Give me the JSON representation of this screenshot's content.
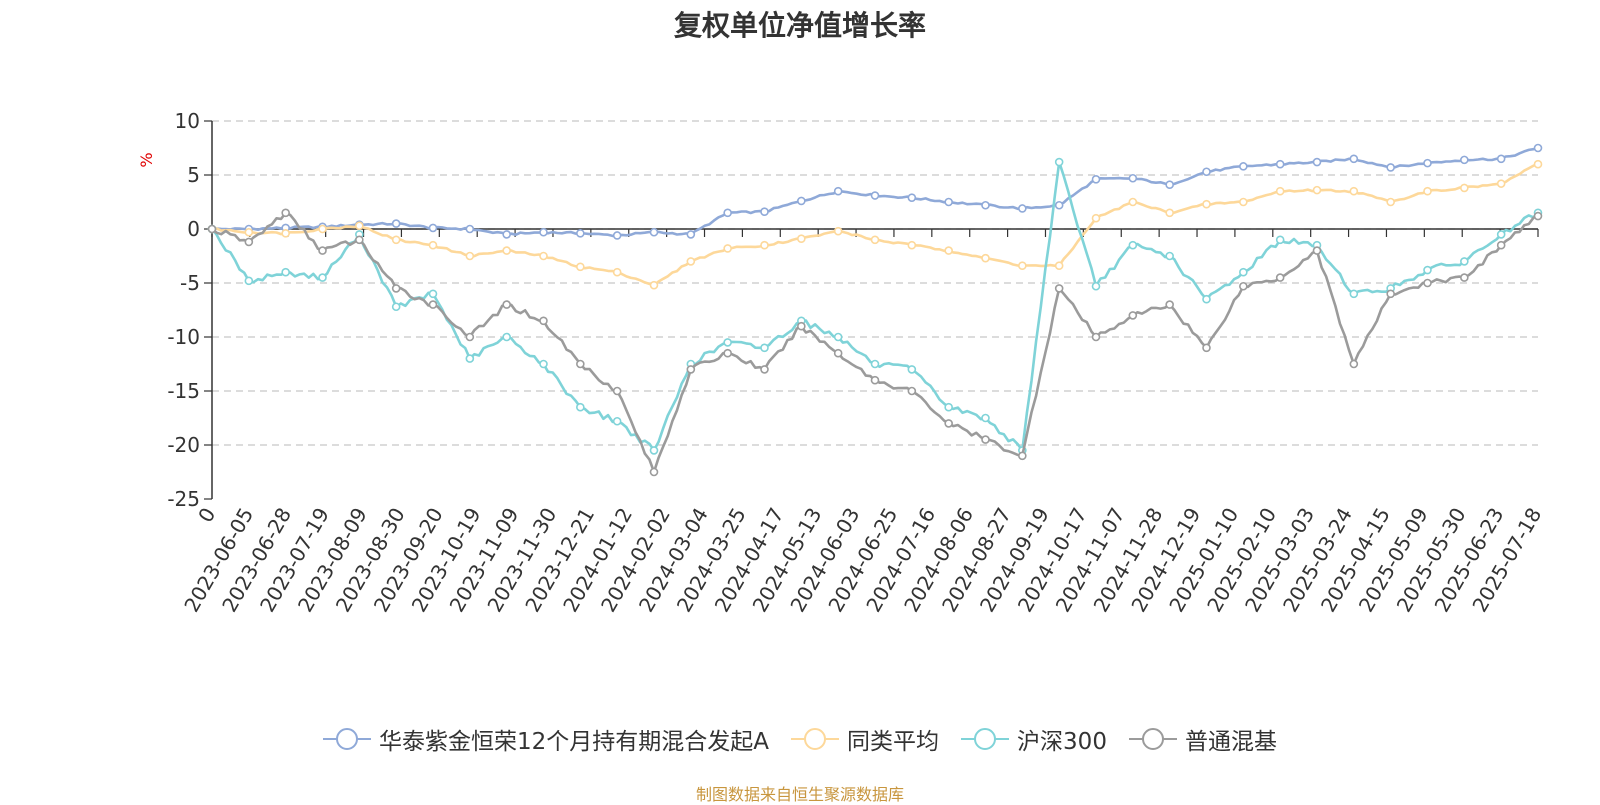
{
  "chart_data": {
    "type": "line",
    "title": "复权单位净值增长率",
    "ylabel": "%",
    "ylim": [
      -25,
      10
    ],
    "yticks": [
      10,
      5,
      0,
      -5,
      -10,
      -15,
      -20,
      -25
    ],
    "x_tick_labels": [
      "0",
      "2023-06-05",
      "2023-06-28",
      "2023-07-19",
      "2023-08-09",
      "2023-08-30",
      "2023-09-20",
      "2023-10-19",
      "2023-11-09",
      "2023-11-30",
      "2023-12-21",
      "2024-01-12",
      "2024-02-02",
      "2024-03-04",
      "2024-03-25",
      "2024-04-17",
      "2024-05-13",
      "2024-06-03",
      "2024-06-25",
      "2024-07-16",
      "2024-08-06",
      "2024-08-27",
      "2024-09-19",
      "2024-10-17",
      "2024-11-07",
      "2024-11-28",
      "2024-12-19",
      "2025-01-10",
      "2025-02-10",
      "2025-03-03",
      "2025-03-24",
      "2025-04-15",
      "2025-05-09",
      "2025-05-30",
      "2025-06-23",
      "2025-07-18"
    ],
    "grid": true,
    "legend_position": "bottom",
    "source": "制图数据来自恒生聚源数据库",
    "series": [
      {
        "name": "华泰紫金恒荣12个月持有期混合发起A",
        "color": "#8fa9d8",
        "values": [
          0,
          0,
          0.1,
          0.2,
          0.4,
          0.5,
          0.1,
          0,
          -0.5,
          -0.3,
          -0.4,
          -0.6,
          -0.3,
          -0.5,
          1.5,
          1.6,
          2.6,
          3.5,
          3.1,
          2.9,
          2.5,
          2.2,
          1.9,
          2.2,
          4.6,
          4.7,
          4.1,
          5.3,
          5.8,
          6.0,
          6.2,
          6.5,
          5.7,
          6.1,
          6.4,
          6.5,
          7.5
        ]
      },
      {
        "name": "同类平均",
        "color": "#fdd89a",
        "values": [
          0,
          -0.3,
          -0.4,
          0,
          0.3,
          -1.0,
          -1.5,
          -2.5,
          -2.0,
          -2.5,
          -3.5,
          -4.0,
          -5.2,
          -3.0,
          -1.8,
          -1.5,
          -0.9,
          -0.2,
          -1.0,
          -1.5,
          -2.0,
          -2.7,
          -3.4,
          -3.4,
          1.0,
          2.5,
          1.5,
          2.3,
          2.5,
          3.5,
          3.6,
          3.5,
          2.5,
          3.5,
          3.8,
          4.2,
          6.0
        ]
      },
      {
        "name": "沪深300",
        "color": "#7fd3d8",
        "values": [
          0,
          -4.8,
          -4.0,
          -4.5,
          -0.5,
          -7.2,
          -6.0,
          -12.0,
          -10.0,
          -12.5,
          -16.5,
          -17.8,
          -20.5,
          -12.5,
          -10.5,
          -11.0,
          -8.5,
          -10.0,
          -12.5,
          -13.0,
          -16.5,
          -17.5,
          -20.5,
          6.2,
          -5.3,
          -1.5,
          -2.5,
          -6.5,
          -4.0,
          -1.0,
          -1.5,
          -6.0,
          -5.5,
          -3.8,
          -3.0,
          -0.5,
          1.5
        ]
      },
      {
        "name": "普通混基",
        "color": "#9b9b9b",
        "values": [
          0,
          -1.2,
          1.5,
          -2.0,
          -1.0,
          -5.5,
          -7.0,
          -10.0,
          -7.0,
          -8.5,
          -12.5,
          -15.0,
          -22.5,
          -13.0,
          -11.5,
          -13.0,
          -9.0,
          -11.5,
          -14.0,
          -15.0,
          -18.0,
          -19.5,
          -21.0,
          -5.5,
          -10.0,
          -8.0,
          -7.0,
          -11.0,
          -5.3,
          -4.5,
          -2.0,
          -12.5,
          -6.0,
          -5.0,
          -4.5,
          -1.5,
          1.2
        ]
      }
    ]
  }
}
